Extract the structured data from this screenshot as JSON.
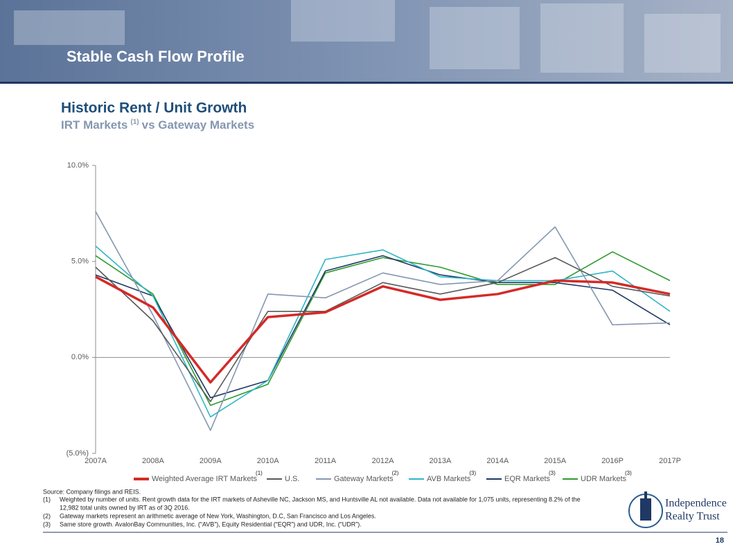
{
  "slide": {
    "title": "Stable Cash Flow Profile",
    "headline": "Historic Rent / Unit Growth",
    "subhead": {
      "before": "IRT Markets",
      "note": "(1)",
      "after": "vs Gateway Markets"
    },
    "source": "Source: Company filings and REIS.",
    "footnotes": [
      {
        "num": "(1)",
        "lines": [
          "Weighted by number of units.  Rent growth data for the IRT markets of Asheville NC, Jackson MS, and Huntsville AL not available.  Data not available for 1,075 units, representing 8.2% of the",
          "12,982 total units owned by IRT as of 3Q 2016."
        ]
      },
      {
        "num": "(2)",
        "lines": [
          "Gateway markets represent an arithmetic average of New York, Washington, D.C, San Francisco and Los Angeles."
        ]
      },
      {
        "num": "(3)",
        "lines": [
          "Same store growth. AvalonBay Communities, Inc. (“AVB”), Equity Residential  (“EQR”) and UDR, Inc. (“UDR”)."
        ]
      }
    ],
    "logo": [
      "Independence",
      "Realty Trust"
    ],
    "page": "18"
  },
  "chart_data": {
    "type": "line",
    "categories": [
      "2007A",
      "2008A",
      "2009A",
      "2010A",
      "2011A",
      "2012A",
      "2013A",
      "2014A",
      "2015A",
      "2016P",
      "2017P"
    ],
    "ylim": [
      -5,
      10
    ],
    "yticks": [
      {
        "value": -5,
        "label": "(5.0%)"
      },
      {
        "value": 0,
        "label": "0.0%"
      },
      {
        "value": 5,
        "label": "5.0%"
      },
      {
        "value": 10,
        "label": "10.0%"
      }
    ],
    "grid": false,
    "series": [
      {
        "name": "Weighted Average IRT Markets",
        "note": "(1)",
        "color": "#d42a27",
        "values": [
          4.2,
          2.6,
          -1.3,
          2.1,
          2.35,
          3.7,
          3.0,
          3.3,
          4.0,
          3.9,
          3.3
        ]
      },
      {
        "name": "U.S.",
        "color": "#595959",
        "values": [
          4.7,
          1.9,
          -2.3,
          2.4,
          2.4,
          3.9,
          3.3,
          3.9,
          5.2,
          3.7,
          3.2
        ]
      },
      {
        "name": "Gateway Markets",
        "note": "(2)",
        "color": "#8497b0",
        "values": [
          7.6,
          2.2,
          -3.8,
          3.3,
          3.1,
          4.4,
          3.8,
          4.0,
          6.8,
          1.7,
          1.8
        ]
      },
      {
        "name": "AVB Markets",
        "note": "(3)",
        "color": "#2fb5c6",
        "values": [
          5.8,
          3.2,
          -3.1,
          -1.2,
          5.1,
          5.6,
          4.2,
          4.0,
          4.0,
          4.5,
          2.4
        ]
      },
      {
        "name": "EQR Markets",
        "note": "(3)",
        "color": "#1f3864",
        "values": [
          4.3,
          3.2,
          -2.1,
          -1.2,
          4.5,
          5.3,
          4.3,
          3.9,
          3.9,
          3.5,
          1.7
        ]
      },
      {
        "name": "UDR Markets",
        "note": "(3)",
        "color": "#2e9a2e",
        "values": [
          5.3,
          3.3,
          -2.5,
          -1.4,
          4.4,
          5.2,
          4.7,
          3.8,
          3.8,
          5.5,
          4.0
        ]
      }
    ]
  }
}
